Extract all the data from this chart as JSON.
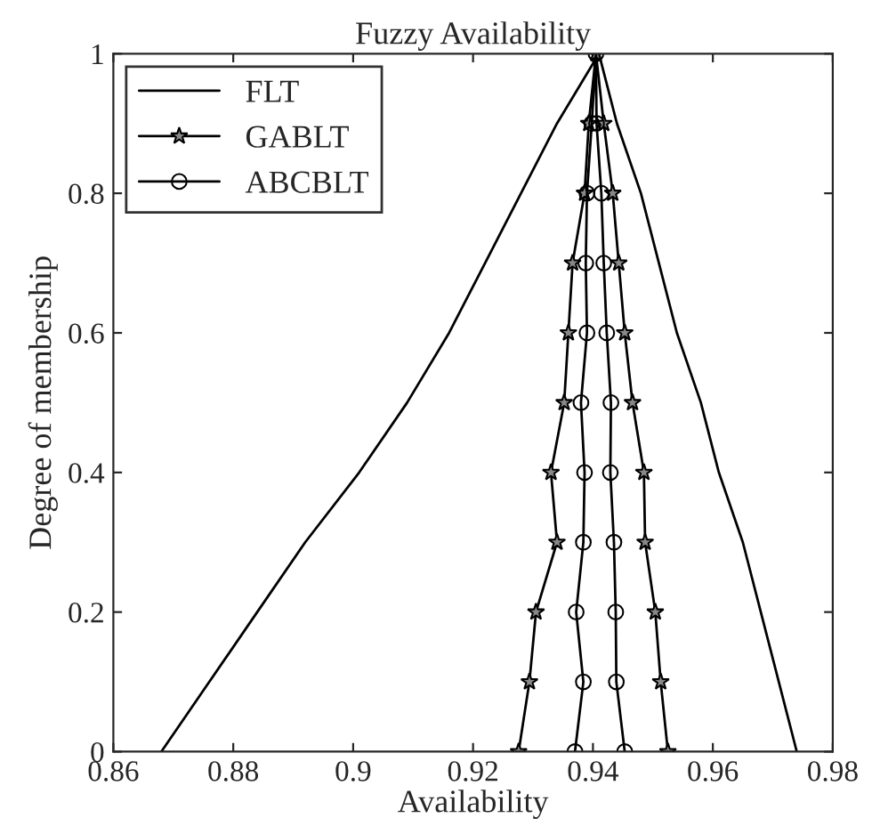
{
  "chart_data": {
    "type": "line",
    "title": "Fuzzy Availability",
    "xlabel": "Availability",
    "ylabel": "Degree of membership",
    "xlim": [
      0.86,
      0.98
    ],
    "xticks": [
      0.86,
      0.88,
      0.9,
      0.92,
      0.94,
      0.96,
      0.98
    ],
    "ylim": [
      0,
      1
    ],
    "yticks": [
      0,
      0.2,
      0.4,
      0.6,
      0.8,
      1
    ],
    "grid": false,
    "legend": "top left",
    "series": [
      {
        "name": "FLT",
        "color": "#000000",
        "marker": "none",
        "x": [
          0.868,
          0.876,
          0.884,
          0.892,
          0.901,
          0.909,
          0.916,
          0.922,
          0.928,
          0.934,
          0.941,
          0.944,
          0.948,
          0.951,
          0.954,
          0.958,
          0.961,
          0.965,
          0.968,
          0.971,
          0.974
        ],
        "values": [
          0,
          0.1,
          0.2,
          0.3,
          0.4,
          0.5,
          0.6,
          0.7,
          0.8,
          0.9,
          1,
          0.9,
          0.8,
          0.7,
          0.6,
          0.5,
          0.4,
          0.3,
          0.2,
          0.1,
          0
        ]
      },
      {
        "name": "GABLT",
        "color": "#000000",
        "marker": "star",
        "x": [
          0.9276,
          0.9294,
          0.9305,
          0.934,
          0.933,
          0.9352,
          0.9359,
          0.9366,
          0.9386,
          0.9393,
          0.9405,
          0.9418,
          0.9433,
          0.9443,
          0.9453,
          0.9466,
          0.9485,
          0.9487,
          0.9504,
          0.9513,
          0.9525
        ],
        "values": [
          0,
          0.1,
          0.2,
          0.3,
          0.4,
          0.5,
          0.6,
          0.7,
          0.8,
          0.9,
          1,
          0.9,
          0.8,
          0.7,
          0.6,
          0.5,
          0.4,
          0.3,
          0.2,
          0.1,
          0
        ]
      },
      {
        "name": "ABCBLT",
        "color": "#000000",
        "marker": "circle",
        "x": [
          0.937,
          0.9384,
          0.9372,
          0.9384,
          0.9386,
          0.938,
          0.939,
          0.9388,
          0.939,
          0.9398,
          0.9405,
          0.9406,
          0.9414,
          0.9418,
          0.9423,
          0.943,
          0.9429,
          0.9435,
          0.9438,
          0.9439,
          0.9453
        ],
        "values": [
          0,
          0.1,
          0.2,
          0.3,
          0.4,
          0.5,
          0.6,
          0.7,
          0.8,
          0.9,
          1,
          0.9,
          0.8,
          0.7,
          0.6,
          0.5,
          0.4,
          0.3,
          0.2,
          0.1,
          0
        ]
      }
    ]
  }
}
